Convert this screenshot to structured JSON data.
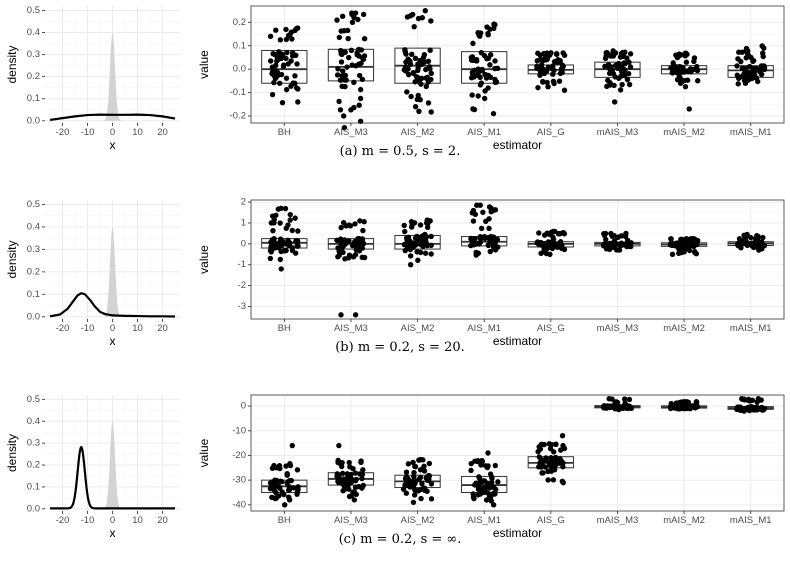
{
  "chart_data": [
    {
      "id": "a",
      "caption": "(a) m = 0.5, s = 2.",
      "density_panel": {
        "type": "line",
        "xlabel": "x",
        "ylabel": "density",
        "xlim": [
          -27,
          27
        ],
        "ylim": [
          -0.01,
          0.52
        ],
        "xticks": [
          -20,
          -10,
          0,
          10,
          20
        ],
        "xtick_labels": [
          "-20",
          "-10",
          "0",
          "10",
          "20"
        ],
        "yticks": [
          0.0,
          0.1,
          0.2,
          0.3,
          0.4,
          0.5
        ],
        "ytick_labels": [
          "0.0",
          "0.1",
          "0.2",
          "0.3",
          "0.4",
          "0.5"
        ],
        "reference": {
          "kind": "normal",
          "mean": 0,
          "sd": 1,
          "peak": 0.4,
          "color": "#d3d3d3"
        },
        "proposal": {
          "kind": "curve",
          "x": [
            -25,
            -20,
            -15,
            -10,
            -5,
            0,
            5,
            10,
            15,
            20,
            25
          ],
          "y": [
            0.004,
            0.012,
            0.02,
            0.026,
            0.028,
            0.027,
            0.027,
            0.028,
            0.026,
            0.02,
            0.01
          ]
        }
      },
      "box_panel": {
        "type": "box",
        "xlabel": "estimator",
        "ylabel": "value",
        "categories": [
          "BH",
          "AIS_M3",
          "AIS_M2",
          "AIS_M1",
          "AIS_G",
          "mAIS_M3",
          "mAIS_M2",
          "mAIS_M1"
        ],
        "ylim": [
          -0.23,
          0.27
        ],
        "yticks": [
          -0.2,
          -0.1,
          0.0,
          0.1,
          0.2
        ],
        "ytick_labels": [
          "-0.2",
          "-0.1",
          "0.0",
          "0.1",
          "0.2"
        ],
        "boxes": [
          {
            "q1": -0.06,
            "median": 0.0,
            "q3": 0.08
          },
          {
            "q1": -0.05,
            "median": 0.01,
            "q3": 0.085
          },
          {
            "q1": -0.06,
            "median": 0.015,
            "q3": 0.09
          },
          {
            "q1": -0.06,
            "median": 0.0,
            "q3": 0.075
          },
          {
            "q1": -0.02,
            "median": -0.003,
            "q3": 0.018
          },
          {
            "q1": -0.035,
            "median": 0.0,
            "q3": 0.03
          },
          {
            "q1": -0.02,
            "median": 0.0,
            "q3": 0.015
          },
          {
            "q1": -0.035,
            "median": -0.005,
            "q3": 0.015
          }
        ],
        "points": [
          {
            "min": -0.16,
            "max": 0.18,
            "extras": [
              -0.14,
              0.17
            ]
          },
          {
            "min": -0.24,
            "max": 0.24,
            "extras": [
              -0.25,
              0.24,
              -0.2,
              0.21
            ]
          },
          {
            "min": -0.19,
            "max": 0.26,
            "extras": [
              -0.18,
              0.25,
              0.22
            ]
          },
          {
            "min": -0.2,
            "max": 0.2,
            "extras": [
              -0.19,
              0.19,
              -0.17
            ]
          },
          {
            "min": -0.1,
            "max": 0.07,
            "extras": [
              0.06,
              -0.09
            ]
          },
          {
            "min": -0.14,
            "max": 0.08,
            "extras": [
              -0.14,
              0.07
            ]
          },
          {
            "min": -0.08,
            "max": 0.07,
            "extras": [
              -0.17,
              0.06
            ]
          },
          {
            "min": -0.07,
            "max": 0.1,
            "extras": [
              0.09,
              -0.06
            ]
          }
        ]
      }
    },
    {
      "id": "b",
      "caption": "(b) m = 0.2, s = 20.",
      "density_panel": {
        "type": "line",
        "xlabel": "x",
        "ylabel": "density",
        "xlim": [
          -27,
          27
        ],
        "ylim": [
          -0.01,
          0.52
        ],
        "xticks": [
          -20,
          -10,
          0,
          10,
          20
        ],
        "xtick_labels": [
          "-20",
          "-10",
          "0",
          "10",
          "20"
        ],
        "yticks": [
          0.0,
          0.1,
          0.2,
          0.3,
          0.4,
          0.5
        ],
        "ytick_labels": [
          "0.0",
          "0.1",
          "0.2",
          "0.3",
          "0.4",
          "0.5"
        ],
        "reference": {
          "kind": "normal",
          "mean": 0,
          "sd": 1,
          "peak": 0.4,
          "color": "#d3d3d3"
        },
        "proposal": {
          "kind": "curve",
          "x": [
            -25,
            -21,
            -18,
            -16,
            -14,
            -12.5,
            -11,
            -9,
            -7,
            -5,
            -3,
            -1,
            0,
            5,
            10,
            15,
            20,
            25
          ],
          "y": [
            0.002,
            0.01,
            0.035,
            0.065,
            0.095,
            0.105,
            0.1,
            0.075,
            0.045,
            0.022,
            0.012,
            0.008,
            0.006,
            0.004,
            0.003,
            0.002,
            0.002,
            0.001
          ]
        }
      },
      "box_panel": {
        "type": "box",
        "xlabel": "estimator",
        "ylabel": "value",
        "categories": [
          "BH",
          "AIS_M3",
          "AIS_M2",
          "AIS_M1",
          "AIS_G",
          "mAIS_M3",
          "mAIS_M2",
          "mAIS_M1"
        ],
        "ylim": [
          -3.6,
          2.1
        ],
        "yticks": [
          -3,
          -2,
          -1,
          0,
          1,
          2
        ],
        "ytick_labels": [
          "-3",
          "-2",
          "-1",
          "0",
          "1",
          "2"
        ],
        "boxes": [
          {
            "q1": -0.2,
            "median": 0.05,
            "q3": 0.25
          },
          {
            "q1": -0.25,
            "median": 0.0,
            "q3": 0.25
          },
          {
            "q1": -0.25,
            "median": 0.0,
            "q3": 0.4
          },
          {
            "q1": -0.1,
            "median": 0.1,
            "q3": 0.35
          },
          {
            "q1": -0.15,
            "median": 0.0,
            "q3": 0.1
          },
          {
            "q1": -0.1,
            "median": 0.0,
            "q3": 0.07
          },
          {
            "q1": -0.12,
            "median": -0.03,
            "q3": 0.05
          },
          {
            "q1": -0.08,
            "median": 0.02,
            "q3": 0.1
          }
        ],
        "points": [
          {
            "min": -1.2,
            "max": 1.7,
            "extras": [
              1.7,
              1.0,
              -1.2
            ]
          },
          {
            "min": -1.2,
            "max": 1.1,
            "extras": [
              -3.4,
              -3.4,
              1.1
            ]
          },
          {
            "min": -1.0,
            "max": 1.15,
            "extras": [
              1.1,
              -1.0
            ]
          },
          {
            "min": -0.7,
            "max": 1.85,
            "extras": [
              1.85,
              1.85,
              1.2
            ]
          },
          {
            "min": -0.55,
            "max": 0.6,
            "extras": [
              0.55,
              -0.5
            ]
          },
          {
            "min": -0.35,
            "max": 0.5,
            "extras": [
              0.5,
              -0.3
            ]
          },
          {
            "min": -0.5,
            "max": 0.25,
            "extras": [
              -0.5,
              0.2
            ]
          },
          {
            "min": -0.35,
            "max": 0.45,
            "extras": [
              0.45,
              -0.3
            ]
          }
        ]
      }
    },
    {
      "id": "c",
      "caption": "(c) m = 0.2, s = ∞.",
      "density_panel": {
        "type": "line",
        "xlabel": "x",
        "ylabel": "density",
        "xlim": [
          -27,
          27
        ],
        "ylim": [
          -0.01,
          0.52
        ],
        "xticks": [
          -20,
          -10,
          0,
          10,
          20
        ],
        "xtick_labels": [
          "-20",
          "-10",
          "0",
          "10",
          "20"
        ],
        "yticks": [
          0.0,
          0.1,
          0.2,
          0.3,
          0.4,
          0.5
        ],
        "ytick_labels": [
          "0.0",
          "0.1",
          "0.2",
          "0.3",
          "0.4",
          "0.5"
        ],
        "reference": {
          "kind": "normal",
          "mean": 0,
          "sd": 1,
          "peak": 0.4,
          "color": "#d3d3d3"
        },
        "proposal": {
          "kind": "normal",
          "mean": -12.5,
          "sd": 1.43,
          "peak": 0.28,
          "floor": 0.002
        }
      },
      "box_panel": {
        "type": "box",
        "xlabel": "estimator",
        "ylabel": "value",
        "categories": [
          "BH",
          "AIS_M3",
          "AIS_M2",
          "AIS_M1",
          "AIS_G",
          "mAIS_M3",
          "mAIS_M2",
          "mAIS_M1"
        ],
        "ylim": [
          -42.5,
          4.5
        ],
        "yticks": [
          -40,
          -30,
          -20,
          -10,
          0
        ],
        "ytick_labels": [
          "-40",
          "-30",
          "-20",
          "-10",
          "0"
        ],
        "boxes": [
          {
            "q1": -35,
            "median": -32.5,
            "q3": -30
          },
          {
            "q1": -32,
            "median": -29.5,
            "q3": -27
          },
          {
            "q1": -33,
            "median": -30.5,
            "q3": -28
          },
          {
            "q1": -35,
            "median": -32,
            "q3": -28.5
          },
          {
            "q1": -25,
            "median": -23,
            "q3": -20.5
          },
          {
            "q1": -0.7,
            "median": -0.2,
            "q3": 0.2
          },
          {
            "q1": -0.8,
            "median": -0.4,
            "q3": 0.1
          },
          {
            "q1": -1.3,
            "median": -0.8,
            "q3": -0.2
          }
        ],
        "points": [
          {
            "min": -40,
            "max": -23,
            "extras": [
              -16,
              -40
            ]
          },
          {
            "min": -38,
            "max": -22,
            "extras": [
              -16,
              -38
            ]
          },
          {
            "min": -39,
            "max": -21.5,
            "extras": [
              -39
            ]
          },
          {
            "min": -40,
            "max": -22,
            "extras": [
              -19,
              -40
            ]
          },
          {
            "min": -31,
            "max": -15,
            "extras": [
              -12,
              -31
            ]
          },
          {
            "min": -1.5,
            "max": 3,
            "extras": [
              3
            ]
          },
          {
            "min": -1.3,
            "max": 1.8,
            "extras": [
              1.8
            ]
          },
          {
            "min": -2,
            "max": 3,
            "extras": [
              3,
              -2
            ]
          }
        ]
      }
    }
  ],
  "colors": {
    "panel_bg": "#ffffff",
    "grid_major": "#ebebeb",
    "grid_minor": "#f5f5f5",
    "panel_border": "#333333",
    "axis_text": "#4d4d4d",
    "title_text": "#000000",
    "reference_fill": "#d3d3d3",
    "curve": "#000000",
    "box_fill": "#ffffff",
    "box_line": "#333333",
    "point": "#000000"
  }
}
